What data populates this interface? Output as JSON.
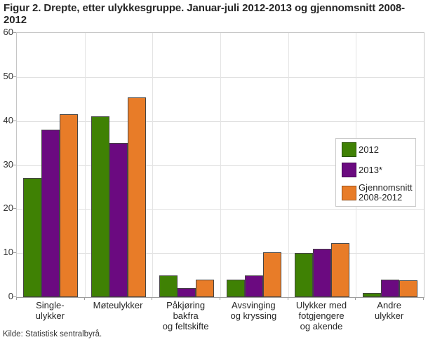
{
  "title": "Figur 2. Drepte, etter ulykkesgruppe. Januar-juli 2012-2013 og gjennomsnitt 2008-2012",
  "source": "Kilde: Statistisk sentralbyrå.",
  "colors": {
    "series_2012": "#3f8104",
    "series_2013": "#6b0a80",
    "series_avg": "#e87c28",
    "gridline": "#e0e0e0",
    "axis": "#9e9e9e",
    "text": "#262626"
  },
  "chart_data": {
    "type": "bar",
    "title": "Figur 2. Drepte, etter ulykkesgruppe. Januar-juli 2012-2013 og gjennomsnitt 2008-2012",
    "categories": [
      "Single-ulykker",
      "Møteulykker",
      "Påkjøring bakfra og feltskifte",
      "Avsvinging og kryssing",
      "Ulykker med fotgjengere og akende",
      "Andre ulykker"
    ],
    "category_lines": [
      [
        "Single-",
        "ulykker"
      ],
      [
        "Møteulykker"
      ],
      [
        "Påkjøring",
        "bakfra",
        "og feltskifte"
      ],
      [
        "Avsvinging",
        "og kryssing"
      ],
      [
        "Ulykker med",
        "fotgjengere",
        "og akende"
      ],
      [
        "Andre",
        "ulykker"
      ]
    ],
    "series": [
      {
        "name": "2012",
        "color": "#3f8104",
        "values": [
          27,
          41,
          5,
          4,
          10,
          1
        ]
      },
      {
        "name": "2013*",
        "color": "#6b0a80",
        "values": [
          38,
          35,
          2,
          5,
          11,
          4
        ]
      },
      {
        "name": "Gjennomsnitt 2008-2012",
        "color": "#e87c28",
        "values": [
          41.6,
          45.4,
          4,
          10.2,
          12.2,
          3.8
        ]
      }
    ],
    "xlabel": "",
    "ylabel": "",
    "ylim": [
      0,
      60
    ],
    "yticks": [
      0,
      10,
      20,
      30,
      40,
      50,
      60
    ],
    "grid": true,
    "legend_position": "inside-right"
  },
  "legend": {
    "items": [
      {
        "label": "2012",
        "lines": [
          "2012"
        ],
        "color": "#3f8104"
      },
      {
        "label": "2013*",
        "lines": [
          "2013*"
        ],
        "color": "#6b0a80"
      },
      {
        "label": "Gjennomsnitt 2008-2012",
        "lines": [
          "Gjennomsnitt",
          "2008-2012"
        ],
        "color": "#e87c28"
      }
    ]
  }
}
